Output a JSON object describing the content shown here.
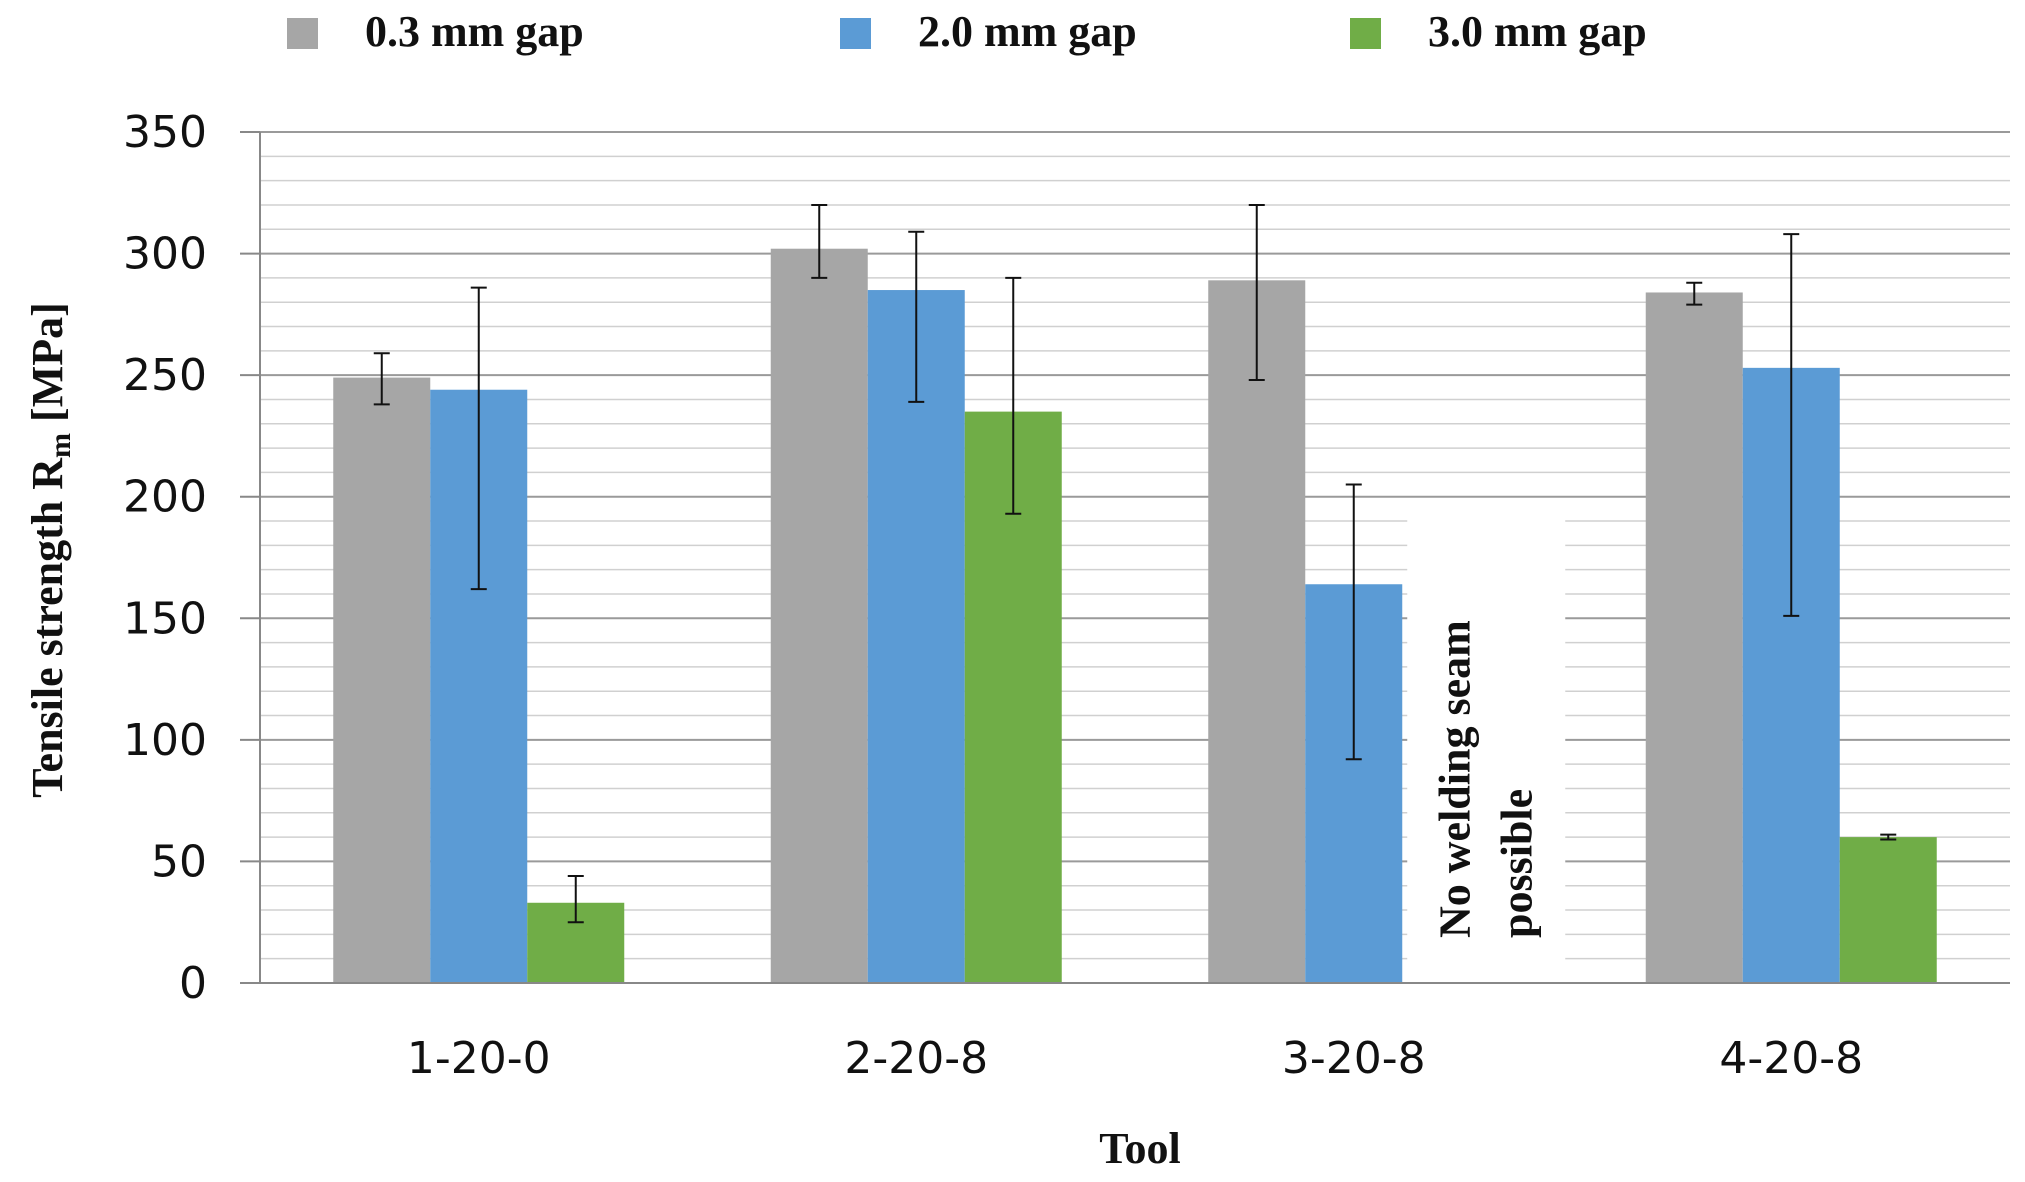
{
  "chart_data": {
    "type": "bar",
    "title": "",
    "xlabel": "Tool",
    "ylabel": "Tensile strength R",
    "ylabel_subscript": "m",
    "ylabel_unit": " [MPa]",
    "categories": [
      "1-20-0",
      "2-20-8",
      "3-20-8",
      "4-20-8"
    ],
    "ylim": [
      0,
      350
    ],
    "yticks": [
      "0",
      "50",
      "100",
      "150",
      "200",
      "250",
      "300",
      "350"
    ],
    "ytick_values": [
      0,
      50,
      100,
      150,
      200,
      250,
      300,
      350
    ],
    "minor_grid_step": 10,
    "grid": true,
    "legend_position": "top",
    "series": [
      {
        "name": "0.3 mm gap",
        "color": "#a6a6a6",
        "values": [
          249,
          302,
          289,
          284
        ],
        "error_low": [
          238,
          290,
          248,
          279
        ],
        "error_high": [
          259,
          320,
          320,
          288
        ]
      },
      {
        "name": "2.0 mm gap",
        "color": "#5b9bd5",
        "values": [
          244,
          285,
          164,
          253
        ],
        "error_low": [
          162,
          239,
          92,
          151
        ],
        "error_high": [
          286,
          309,
          205,
          308
        ]
      },
      {
        "name": "3.0 mm gap",
        "color": "#70ad47",
        "values": [
          33,
          235,
          null,
          60
        ],
        "error_low": [
          25,
          193,
          null,
          59
        ],
        "error_high": [
          44,
          290,
          null,
          61
        ]
      }
    ],
    "annotation": {
      "lines": [
        "No welding seam",
        "possible"
      ],
      "category": "3-20-8",
      "series": "3.0 mm gap"
    }
  }
}
